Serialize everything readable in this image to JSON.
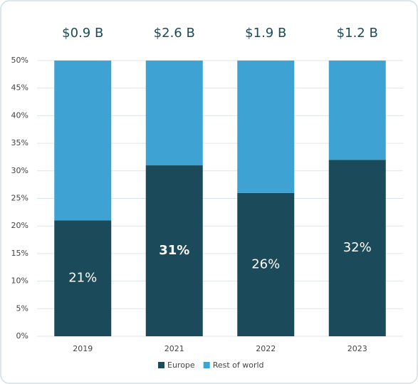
{
  "chart_data": {
    "type": "stacked_bar",
    "categories": [
      "2019",
      "2021",
      "2022",
      "2023"
    ],
    "annotations": [
      "$0.9 B",
      "$2.6 B",
      "$1.9 B",
      "$1.2 B"
    ],
    "series": [
      {
        "name": "Europe",
        "color": "#1b4b5b",
        "values": [
          21,
          31,
          26,
          32
        ],
        "value_labels": [
          "21%",
          "31%",
          "26%",
          "32%"
        ]
      },
      {
        "name": "Rest of world",
        "color": "#3ea3d3",
        "values": [
          29,
          19,
          24,
          18
        ]
      }
    ],
    "ylim": [
      0,
      50
    ],
    "yticks": [
      {
        "value": 0,
        "label": "0%"
      },
      {
        "value": 5,
        "label": "5%"
      },
      {
        "value": 10,
        "label": "10%"
      },
      {
        "value": 15,
        "label": "15%"
      },
      {
        "value": 20,
        "label": "20%"
      },
      {
        "value": 25,
        "label": "25%"
      },
      {
        "value": 30,
        "label": "30%"
      },
      {
        "value": 35,
        "label": "35%"
      },
      {
        "value": 40,
        "label": "40%"
      },
      {
        "value": 45,
        "label": "45%"
      },
      {
        "value": 50,
        "label": "50%"
      }
    ],
    "grid": true,
    "legend": "bottom"
  }
}
